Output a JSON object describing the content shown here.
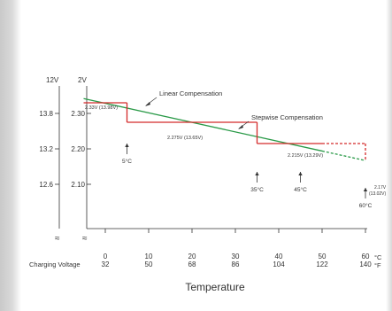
{
  "chart_data": {
    "type": "line",
    "title": "",
    "xlabel": "Temperature",
    "ylabel": "Charging Voltage",
    "x_unit_c": "°C",
    "x_unit_f": "°F",
    "x_ticks_c": [
      "0",
      "10",
      "20",
      "30",
      "40",
      "50",
      "60"
    ],
    "x_ticks_f": [
      "32",
      "50",
      "68",
      "86",
      "104",
      "122",
      "140"
    ],
    "xlim": [
      0,
      60
    ],
    "y_unit_12v": "12V",
    "y_unit_2v": "2V",
    "y_ticks_12v": [
      "13.8",
      "13.2",
      "12.6"
    ],
    "y_ticks_2v": [
      "2.30",
      "2.20",
      "2.10"
    ],
    "y_tick_values": [
      2.3,
      2.2,
      2.1
    ],
    "ylim": [
      2.075,
      2.35
    ],
    "axis_break": "≈",
    "colors": {
      "linear": "#2a9a48",
      "stepwise": "#d42a2a",
      "text": "#333333"
    },
    "series": [
      {
        "name": "Linear Compensation",
        "style": "solid-then-dashed",
        "dashed_from_x": 50,
        "points": [
          [
            -5,
            2.342
          ],
          [
            60,
            2.167
          ]
        ]
      },
      {
        "name": "Stepwise Compensation",
        "style": "step",
        "dashed_from_x": 50,
        "steps": [
          {
            "x0": -5,
            "x1": 5,
            "y": 2.33
          },
          {
            "x0": 5,
            "x1": 35,
            "y": 2.275
          },
          {
            "x0": 35,
            "x1": 60,
            "y": 2.215
          },
          {
            "x0": 60,
            "x1": 60,
            "y": 2.17
          }
        ]
      }
    ],
    "step_labels": [
      "2.33V (13.98V)",
      "2.275V (13.65V)",
      "2.215V (13.29V)",
      "2.17V",
      "(13.02V)"
    ],
    "temperature_markers": [
      "5°C",
      "35°C",
      "45°C",
      "60°C"
    ],
    "marker_values": [
      5,
      35,
      45,
      60
    ]
  }
}
